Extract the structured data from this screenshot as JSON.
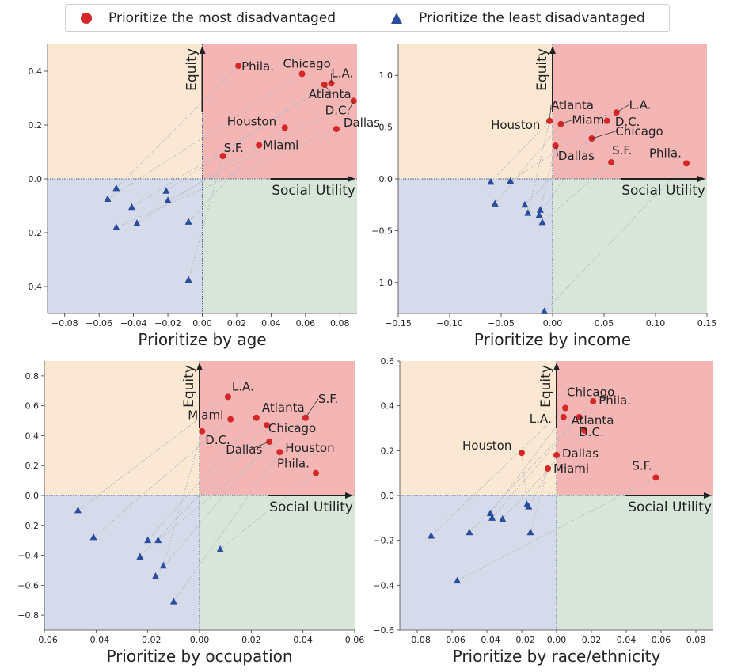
{
  "legend": {
    "most": {
      "label": "Prioritize the most disadvantaged",
      "color": "#d62728",
      "marker": "circle"
    },
    "least": {
      "label": "Prioritize the least disadvantaged",
      "color": "#2a4d9b",
      "marker": "triangle"
    }
  },
  "colors": {
    "q_top_left": "#fbe8d2",
    "q_top_right": "#f4b6b5",
    "q_bottom_left": "#d6dbeb",
    "q_bottom_right": "#d8e6da",
    "connector": "#b8bcc8",
    "axis_arrow": "#222222",
    "zero_line": "#4a5a8a"
  },
  "chart_data": [
    {
      "type": "scatter",
      "xlabel": "Prioritize by age",
      "ylabel": "Equity",
      "x_arrow_label": "Social Utility",
      "y_arrow_label": "Equity",
      "xlim": [
        -0.09,
        0.09
      ],
      "ylim": [
        -0.5,
        0.5
      ],
      "xticks": [
        -0.08,
        -0.06,
        -0.04,
        -0.02,
        0.0,
        0.02,
        0.04,
        0.06,
        0.08
      ],
      "yticks": [
        -0.4,
        -0.2,
        0.0,
        0.2,
        0.4
      ],
      "xtick_labels": [
        "−0.08",
        "−0.06",
        "−0.04",
        "−0.02",
        "0.00",
        "0.02",
        "0.04",
        "0.06",
        "0.08"
      ],
      "ytick_labels": [
        "−0.4",
        "−0.2",
        "0.0",
        "0.2",
        "0.4"
      ],
      "most": [
        {
          "label": "Phila.",
          "x": 0.021,
          "y": 0.42
        },
        {
          "label": "Chicago",
          "x": 0.058,
          "y": 0.39
        },
        {
          "label": "L.A.",
          "x": 0.075,
          "y": 0.355
        },
        {
          "label": "Atlanta",
          "x": 0.071,
          "y": 0.35
        },
        {
          "label": "D.C.",
          "x": 0.088,
          "y": 0.29
        },
        {
          "label": "Houston",
          "x": 0.048,
          "y": 0.19
        },
        {
          "label": "Dallas",
          "x": 0.078,
          "y": 0.185
        },
        {
          "label": "Miami",
          "x": 0.033,
          "y": 0.125
        },
        {
          "label": "S.F.",
          "x": 0.012,
          "y": 0.085
        }
      ],
      "least": [
        {
          "x": -0.05,
          "y": -0.035
        },
        {
          "x": -0.055,
          "y": -0.075
        },
        {
          "x": -0.041,
          "y": -0.105
        },
        {
          "x": -0.021,
          "y": -0.045
        },
        {
          "x": -0.02,
          "y": -0.08
        },
        {
          "x": -0.038,
          "y": -0.165
        },
        {
          "x": -0.05,
          "y": -0.18
        },
        {
          "x": -0.008,
          "y": -0.16
        },
        {
          "x": -0.008,
          "y": -0.375
        }
      ]
    },
    {
      "type": "scatter",
      "xlabel": "Prioritize by income",
      "ylabel": "Equity",
      "x_arrow_label": "Social Utility",
      "y_arrow_label": "Equity",
      "xlim": [
        -0.15,
        0.15
      ],
      "ylim": [
        -1.3,
        1.3
      ],
      "xticks": [
        -0.15,
        -0.1,
        -0.05,
        0.0,
        0.05,
        0.1,
        0.15
      ],
      "yticks": [
        -1.0,
        -0.5,
        0.0,
        0.5,
        1.0
      ],
      "xtick_labels": [
        "−0.15",
        "−0.10",
        "−0.05",
        "0.00",
        "0.05",
        "0.10",
        "0.15"
      ],
      "ytick_labels": [
        "−1.0",
        "−0.5",
        "0.0",
        "0.5",
        "1.0"
      ],
      "most": [
        {
          "label": "Atlanta",
          "x": -0.003,
          "y": 0.56
        },
        {
          "label": "L.A.",
          "x": 0.062,
          "y": 0.64
        },
        {
          "label": "Miami",
          "x": 0.008,
          "y": 0.53
        },
        {
          "label": "D.C.",
          "x": 0.053,
          "y": 0.56
        },
        {
          "label": "Houston",
          "x": -0.003,
          "y": 0.56
        },
        {
          "label": "Chicago",
          "x": 0.038,
          "y": 0.39
        },
        {
          "label": "Dallas",
          "x": 0.003,
          "y": 0.32
        },
        {
          "label": "S.F.",
          "x": 0.057,
          "y": 0.16
        },
        {
          "label": "Phila.",
          "x": 0.13,
          "y": 0.15
        }
      ],
      "least": [
        {
          "x": -0.06,
          "y": -0.03
        },
        {
          "x": -0.041,
          "y": -0.02
        },
        {
          "x": -0.056,
          "y": -0.24
        },
        {
          "x": -0.027,
          "y": -0.25
        },
        {
          "x": -0.024,
          "y": -0.33
        },
        {
          "x": -0.013,
          "y": -0.35
        },
        {
          "x": -0.012,
          "y": -0.3
        },
        {
          "x": -0.01,
          "y": -0.42
        },
        {
          "x": -0.008,
          "y": -1.28
        }
      ]
    },
    {
      "type": "scatter",
      "xlabel": "Prioritize by occupation",
      "ylabel": "Equity",
      "x_arrow_label": "Social Utility",
      "y_arrow_label": "Equity",
      "xlim": [
        -0.06,
        0.06
      ],
      "ylim": [
        -0.9,
        0.9
      ],
      "xticks": [
        -0.06,
        -0.04,
        -0.02,
        0.0,
        0.02,
        0.04,
        0.06
      ],
      "yticks": [
        -0.8,
        -0.6,
        -0.4,
        -0.2,
        0.0,
        0.2,
        0.4,
        0.6,
        0.8
      ],
      "xtick_labels": [
        "−0.06",
        "−0.04",
        "−0.02",
        "0.00",
        "0.02",
        "0.04",
        "0.06"
      ],
      "ytick_labels": [
        "−0.8",
        "−0.6",
        "−0.4",
        "−0.2",
        "0.0",
        "0.2",
        "0.4",
        "0.6",
        "0.8"
      ],
      "most": [
        {
          "label": "L.A.",
          "x": 0.011,
          "y": 0.66
        },
        {
          "label": "Miami",
          "x": 0.012,
          "y": 0.51
        },
        {
          "label": "Atlanta",
          "x": 0.022,
          "y": 0.52
        },
        {
          "label": "S.F.",
          "x": 0.041,
          "y": 0.52
        },
        {
          "label": "Chicago",
          "x": 0.026,
          "y": 0.47
        },
        {
          "label": "D.C.",
          "x": 0.001,
          "y": 0.43
        },
        {
          "label": "Dallas",
          "x": 0.027,
          "y": 0.36
        },
        {
          "label": "Houston",
          "x": 0.031,
          "y": 0.29
        },
        {
          "label": "Phila.",
          "x": 0.045,
          "y": 0.15
        }
      ],
      "least": [
        {
          "x": -0.047,
          "y": -0.1
        },
        {
          "x": -0.041,
          "y": -0.28
        },
        {
          "x": -0.02,
          "y": -0.3
        },
        {
          "x": -0.016,
          "y": -0.3
        },
        {
          "x": -0.023,
          "y": -0.41
        },
        {
          "x": -0.014,
          "y": -0.47
        },
        {
          "x": -0.017,
          "y": -0.54
        },
        {
          "x": -0.01,
          "y": -0.71
        },
        {
          "x": 0.008,
          "y": -0.36
        }
      ]
    },
    {
      "type": "scatter",
      "xlabel": "Prioritize by race/ethnicity",
      "ylabel": "Equity",
      "x_arrow_label": "Social Utility",
      "y_arrow_label": "Equity",
      "xlim": [
        -0.09,
        0.09
      ],
      "ylim": [
        -0.6,
        0.6
      ],
      "xticks": [
        -0.08,
        -0.06,
        -0.04,
        -0.02,
        0.0,
        0.02,
        0.04,
        0.06,
        0.08
      ],
      "yticks": [
        -0.6,
        -0.4,
        -0.2,
        0.0,
        0.2,
        0.4,
        0.6
      ],
      "xtick_labels": [
        "−0.08",
        "−0.06",
        "−0.04",
        "−0.02",
        "0.00",
        "0.02",
        "0.04",
        "0.06",
        "0.08"
      ],
      "ytick_labels": [
        "−0.6",
        "−0.4",
        "−0.2",
        "0.0",
        "0.2",
        "0.4",
        "0.6"
      ],
      "most": [
        {
          "label": "Chicago",
          "x": 0.005,
          "y": 0.39
        },
        {
          "label": "Phila.",
          "x": 0.021,
          "y": 0.42
        },
        {
          "label": "L.A.",
          "x": 0.004,
          "y": 0.35
        },
        {
          "label": "Atlanta",
          "x": 0.013,
          "y": 0.35
        },
        {
          "label": "D.C.",
          "x": 0.016,
          "y": 0.29
        },
        {
          "label": "Houston",
          "x": -0.02,
          "y": 0.19
        },
        {
          "label": "Dallas",
          "x": 0.0,
          "y": 0.18
        },
        {
          "label": "Miami",
          "x": -0.005,
          "y": 0.12
        },
        {
          "label": "S.F.",
          "x": 0.057,
          "y": 0.08
        }
      ],
      "least": [
        {
          "x": -0.072,
          "y": -0.18
        },
        {
          "x": -0.05,
          "y": -0.165
        },
        {
          "x": -0.038,
          "y": -0.08
        },
        {
          "x": -0.037,
          "y": -0.1
        },
        {
          "x": -0.031,
          "y": -0.105
        },
        {
          "x": -0.017,
          "y": -0.04
        },
        {
          "x": -0.016,
          "y": -0.05
        },
        {
          "x": -0.015,
          "y": -0.165
        },
        {
          "x": -0.057,
          "y": -0.38
        }
      ]
    }
  ]
}
